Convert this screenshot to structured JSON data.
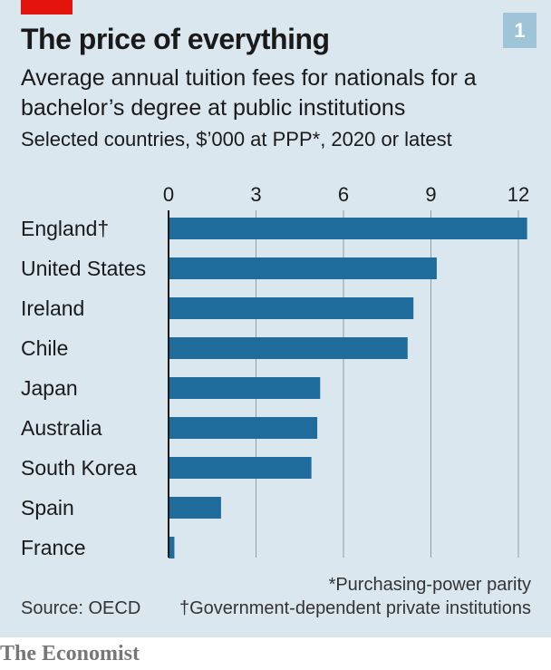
{
  "header": {
    "title": "The price of everything",
    "subtitle": "Average annual tuition fees for nationals for a bachelor’s degree at public institutions",
    "units": "Selected countries, $’000 at PPP*, 2020 or latest",
    "chart_number": "1"
  },
  "footer": {
    "footnote_ppp": "*Purchasing-power parity",
    "source": "Source: OECD",
    "footnote_dagger": "†Government-dependent private institutions",
    "brand": "The Economist"
  },
  "colors": {
    "bar": "#1e6b9c",
    "background": "#dbe7ef",
    "grid": "#8e9ca6",
    "accent_red": "#e3120b"
  },
  "chart_data": {
    "type": "bar",
    "orientation": "horizontal",
    "categories": [
      "England†",
      "United States",
      "Ireland",
      "Chile",
      "Japan",
      "Australia",
      "South Korea",
      "Spain",
      "France"
    ],
    "values": [
      12.3,
      9.2,
      8.4,
      8.2,
      5.2,
      5.1,
      4.9,
      1.8,
      0.2
    ],
    "xlim": [
      0,
      12
    ],
    "ticks": [
      0,
      3,
      6,
      9,
      12
    ],
    "grid": true
  }
}
